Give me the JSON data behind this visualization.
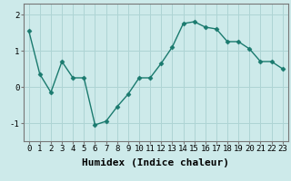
{
  "x": [
    0,
    1,
    2,
    3,
    4,
    5,
    6,
    7,
    8,
    9,
    10,
    11,
    12,
    13,
    14,
    15,
    16,
    17,
    18,
    19,
    20,
    21,
    22,
    23
  ],
  "y": [
    1.55,
    0.35,
    -0.15,
    0.7,
    0.25,
    0.25,
    -1.05,
    -0.95,
    -0.55,
    -0.2,
    0.25,
    0.25,
    0.65,
    1.1,
    1.75,
    1.8,
    1.65,
    1.6,
    1.25,
    1.25,
    1.05,
    0.7,
    0.7,
    0.5
  ],
  "line_color": "#1a7a6e",
  "marker": "D",
  "markersize": 2.5,
  "linewidth": 1.0,
  "xlabel": "Humidex (Indice chaleur)",
  "xlabel_fontsize": 8,
  "background_color": "#cdeaea",
  "grid_color": "#aed4d4",
  "ylim": [
    -1.5,
    2.3
  ],
  "yticks": [
    -1,
    0,
    1,
    2
  ],
  "ytick_labels": [
    "-1",
    "0",
    "1",
    "2"
  ],
  "xticks": [
    0,
    1,
    2,
    3,
    4,
    5,
    6,
    7,
    8,
    9,
    10,
    11,
    12,
    13,
    14,
    15,
    16,
    17,
    18,
    19,
    20,
    21,
    22,
    23
  ],
  "tick_fontsize": 6.5,
  "linestyle": "-"
}
